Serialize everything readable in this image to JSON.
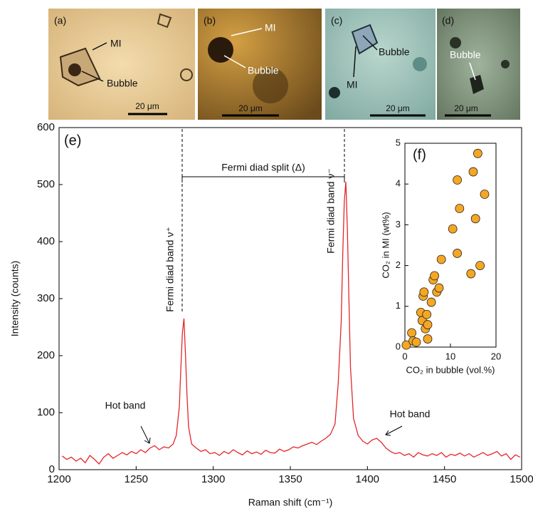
{
  "panels": [
    {
      "label": "(a)",
      "texts": [
        "MI",
        "Bubble"
      ],
      "scale_bar": "20 μm"
    },
    {
      "label": "(b)",
      "texts": [
        "MI",
        "Bubble"
      ],
      "scale_bar": "20 μm"
    },
    {
      "label": "(c)",
      "texts": [
        "Bubble",
        "MI"
      ],
      "scale_bar": "20 μm"
    },
    {
      "label": "(d)",
      "texts": [
        "Bubble"
      ],
      "scale_bar": "20 μm"
    }
  ],
  "chart_data": [
    {
      "type": "line",
      "panel_label": "(e)",
      "xlabel": "Raman shift (cm⁻¹)",
      "ylabel": "Intensity (counts)",
      "annotations": [
        "Fermi diad split (Δ)",
        "Fermi diad band ν⁺",
        "Fermi diad band ν⁻",
        "Hot band",
        "Hot band"
      ],
      "x": [
        1202,
        1205,
        1208,
        1211,
        1214,
        1217,
        1220,
        1223,
        1226,
        1229,
        1232,
        1235,
        1238,
        1241,
        1244,
        1247,
        1250,
        1253,
        1256,
        1259,
        1262,
        1265,
        1268,
        1271,
        1274,
        1276,
        1278,
        1279,
        1280,
        1281,
        1282,
        1283,
        1284,
        1286,
        1289,
        1292,
        1295,
        1298,
        1301,
        1304,
        1307,
        1310,
        1313,
        1316,
        1319,
        1322,
        1325,
        1328,
        1331,
        1334,
        1337,
        1340,
        1343,
        1346,
        1349,
        1352,
        1355,
        1358,
        1361,
        1364,
        1367,
        1370,
        1373,
        1376,
        1379,
        1381,
        1383,
        1384,
        1385,
        1386,
        1387,
        1388,
        1389,
        1391,
        1394,
        1397,
        1400,
        1403,
        1406,
        1409,
        1412,
        1415,
        1418,
        1421,
        1424,
        1427,
        1430,
        1433,
        1436,
        1439,
        1442,
        1445,
        1448,
        1451,
        1454,
        1457,
        1460,
        1463,
        1466,
        1469,
        1472,
        1475,
        1478,
        1481,
        1484,
        1487,
        1490,
        1493,
        1496,
        1499
      ],
      "series": [
        {
          "color": "#e3262b",
          "values": [
            24,
            18,
            22,
            15,
            20,
            12,
            25,
            18,
            10,
            22,
            28,
            20,
            25,
            30,
            26,
            32,
            28,
            35,
            30,
            38,
            42,
            35,
            40,
            38,
            45,
            60,
            110,
            180,
            240,
            265,
            200,
            130,
            75,
            45,
            38,
            32,
            35,
            28,
            30,
            25,
            32,
            28,
            35,
            30,
            26,
            33,
            28,
            31,
            27,
            34,
            30,
            29,
            36,
            32,
            35,
            40,
            38,
            42,
            45,
            48,
            44,
            50,
            55,
            62,
            80,
            150,
            260,
            380,
            470,
            505,
            420,
            300,
            180,
            90,
            60,
            50,
            45,
            52,
            55,
            48,
            38,
            32,
            28,
            30,
            25,
            28,
            22,
            30,
            26,
            24,
            28,
            25,
            30,
            22,
            27,
            25,
            29,
            24,
            28,
            22,
            26,
            30,
            25,
            28,
            32,
            24,
            28,
            18,
            26,
            22
          ]
        }
      ],
      "xlim": [
        1200,
        1500
      ],
      "ylim": [
        0,
        600
      ],
      "xticks": [
        1200,
        1250,
        1300,
        1350,
        1400,
        1450,
        1500
      ],
      "yticks": [
        0,
        100,
        200,
        300,
        400,
        500,
        600
      ]
    },
    {
      "type": "scatter",
      "panel_label": "(f)",
      "xlabel": "CO₂ in bubble (vol.%)",
      "ylabel": "CO₂ in MI (wt%)",
      "color": "#f5a623",
      "x": [
        0.3,
        1.5,
        1.8,
        2.5,
        3.5,
        3.8,
        4,
        4.2,
        4.5,
        4.8,
        5,
        5,
        5.8,
        6.2,
        6.5,
        7,
        7.5,
        8,
        10.5,
        11.5,
        11.5,
        12,
        14.5,
        15,
        15.5,
        16,
        16.5,
        17.5
      ],
      "y": [
        0.05,
        0.35,
        0.15,
        0.12,
        0.85,
        0.65,
        1.25,
        1.35,
        0.45,
        0.8,
        0.2,
        0.55,
        1.1,
        1.65,
        1.75,
        1.35,
        1.45,
        2.15,
        2.9,
        4.1,
        2.3,
        3.4,
        1.8,
        4.3,
        3.15,
        4.75,
        2.0,
        3.75
      ],
      "xlim": [
        0,
        20
      ],
      "ylim": [
        0,
        5
      ],
      "xticks": [
        0,
        10,
        20
      ],
      "yticks": [
        0,
        1,
        2,
        3,
        4,
        5
      ]
    }
  ]
}
